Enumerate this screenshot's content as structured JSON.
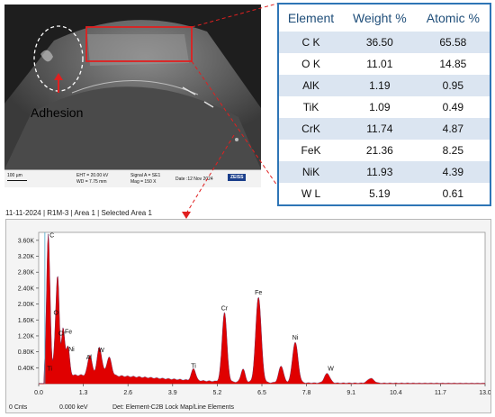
{
  "sem": {
    "annotation": "Adhesion",
    "info_bar": {
      "scale": "100 µm",
      "eht": "EHT = 20.00 kV",
      "wd": "WD = 7.75 mm",
      "signal": "Signal A = SE1",
      "mag": "Mag =   150 X",
      "date": "Date :12 Nov 2024",
      "brand": "ZEISS"
    }
  },
  "table": {
    "headers": [
      "Element",
      "Weight %",
      "Atomic %"
    ],
    "rows": [
      [
        "C K",
        "36.50",
        "65.58"
      ],
      [
        "O K",
        "11.01",
        "14.85"
      ],
      [
        "AlK",
        "1.19",
        "0.95"
      ],
      [
        "TiK",
        "1.09",
        "0.49"
      ],
      [
        "CrK",
        "11.74",
        "4.87"
      ],
      [
        "FeK",
        "21.36",
        "8.25"
      ],
      [
        "NiK",
        "11.93",
        "4.39"
      ],
      [
        "W L",
        "5.19",
        "0.61"
      ]
    ]
  },
  "spectrum": {
    "header": "11-11-2024 | R1M-3 | Area 1 | Selected Area 1",
    "footer": {
      "counts": "0 Cnts",
      "kev": "0.000 keV",
      "det": "Det: Element-C2B Lock Map/Line Elements"
    }
  },
  "colors": {
    "spectrum_fill": "#e00000",
    "highlight": "#e02020",
    "table_border": "#2e75b6",
    "table_header_text": "#1f4e79",
    "table_stripe": "#dbe5f1"
  },
  "chart_data": {
    "type": "area",
    "x_tick_labels": [
      "0.0",
      "1.3",
      "2.6",
      "3.9",
      "5.2",
      "6.5",
      "7.8",
      "9.1",
      "10.4",
      "11.7",
      "13.0"
    ],
    "y_tick_labels": [
      "0.40K",
      "0.80K",
      "1.20K",
      "1.60K",
      "2.00K",
      "2.40K",
      "2.80K",
      "3.20K",
      "3.60K"
    ],
    "xlim": [
      0,
      13.0
    ],
    "ylim": [
      0,
      3800
    ],
    "xlabel": "",
    "ylabel": "",
    "peaks": [
      {
        "label": "C",
        "kev": 0.28,
        "counts": 3580,
        "width": 0.05
      },
      {
        "label": "O",
        "kev": 0.53,
        "counts": 1640,
        "width": 0.05
      },
      {
        "label": "Fe",
        "kev": 0.71,
        "counts": 1170,
        "width": 0.05
      },
      {
        "label": "Cr",
        "kev": 0.57,
        "counts": 1100,
        "width": 0.04
      },
      {
        "label": "Ni",
        "kev": 0.85,
        "counts": 720,
        "width": 0.05
      },
      {
        "label": "Ti",
        "kev": 0.45,
        "counts": 260,
        "width": 0.04
      },
      {
        "label": "Al",
        "kev": 1.49,
        "counts": 520,
        "width": 0.06
      },
      {
        "label": "W",
        "kev": 1.77,
        "counts": 700,
        "width": 0.07
      },
      {
        "label": "",
        "kev": 2.05,
        "counts": 460,
        "width": 0.07
      },
      {
        "label": "Ti",
        "kev": 4.51,
        "counts": 300,
        "width": 0.06
      },
      {
        "label": "Cr",
        "kev": 5.41,
        "counts": 1750,
        "width": 0.07
      },
      {
        "label": "",
        "kev": 5.95,
        "counts": 330,
        "width": 0.06
      },
      {
        "label": "Fe",
        "kev": 6.4,
        "counts": 2150,
        "width": 0.08
      },
      {
        "label": "",
        "kev": 7.06,
        "counts": 420,
        "width": 0.07
      },
      {
        "label": "Ni",
        "kev": 7.47,
        "counts": 1020,
        "width": 0.08
      },
      {
        "label": "W",
        "kev": 8.4,
        "counts": 240,
        "width": 0.08
      },
      {
        "label": "",
        "kev": 9.67,
        "counts": 120,
        "width": 0.09
      }
    ]
  }
}
